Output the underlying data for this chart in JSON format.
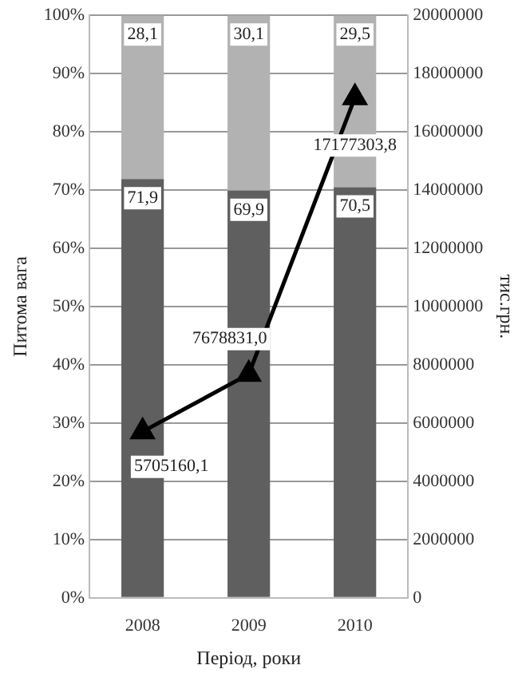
{
  "chart_data": {
    "type": "bar",
    "stacked": true,
    "xlabel": "Період, роки",
    "ylabel": "Питома вага",
    "y2label": "тис.грн.",
    "categories": [
      "2008",
      "2009",
      "2010"
    ],
    "series": [
      {
        "color": "#5f5f5f",
        "values": [
          71.9,
          69.9,
          70.5
        ],
        "value_labels": [
          "71,9",
          "69,9",
          "70,5"
        ]
      },
      {
        "color": "#b2b2b2",
        "values": [
          28.1,
          30.1,
          29.5
        ],
        "value_labels": [
          "28,1",
          "30,1",
          "29,5"
        ]
      },
      {
        "type": "line",
        "axis": "y2",
        "color": "#000000",
        "marker": "triangle",
        "line_style": "solid",
        "values": [
          5705160.1,
          7678831.0,
          17177303.8
        ],
        "value_labels": [
          "5705160,1",
          "7678831,0",
          "17177303,8"
        ]
      }
    ],
    "ylim": [
      0,
      100
    ],
    "yticks": [
      {
        "value": 0,
        "label": "0%"
      },
      {
        "value": 10,
        "label": "10%"
      },
      {
        "value": 20,
        "label": "20%"
      },
      {
        "value": 30,
        "label": "30%"
      },
      {
        "value": 40,
        "label": "40%"
      },
      {
        "value": 50,
        "label": "50%"
      },
      {
        "value": 60,
        "label": "60%"
      },
      {
        "value": 70,
        "label": "70%"
      },
      {
        "value": 80,
        "label": "80%"
      },
      {
        "value": 90,
        "label": "90%"
      },
      {
        "value": 100,
        "label": "100%"
      }
    ],
    "y2lim": [
      0,
      20000000
    ],
    "y2ticks": [
      0,
      2000000,
      4000000,
      6000000,
      8000000,
      10000000,
      12000000,
      14000000,
      16000000,
      18000000,
      20000000
    ],
    "grid": "y",
    "legend": false
  }
}
